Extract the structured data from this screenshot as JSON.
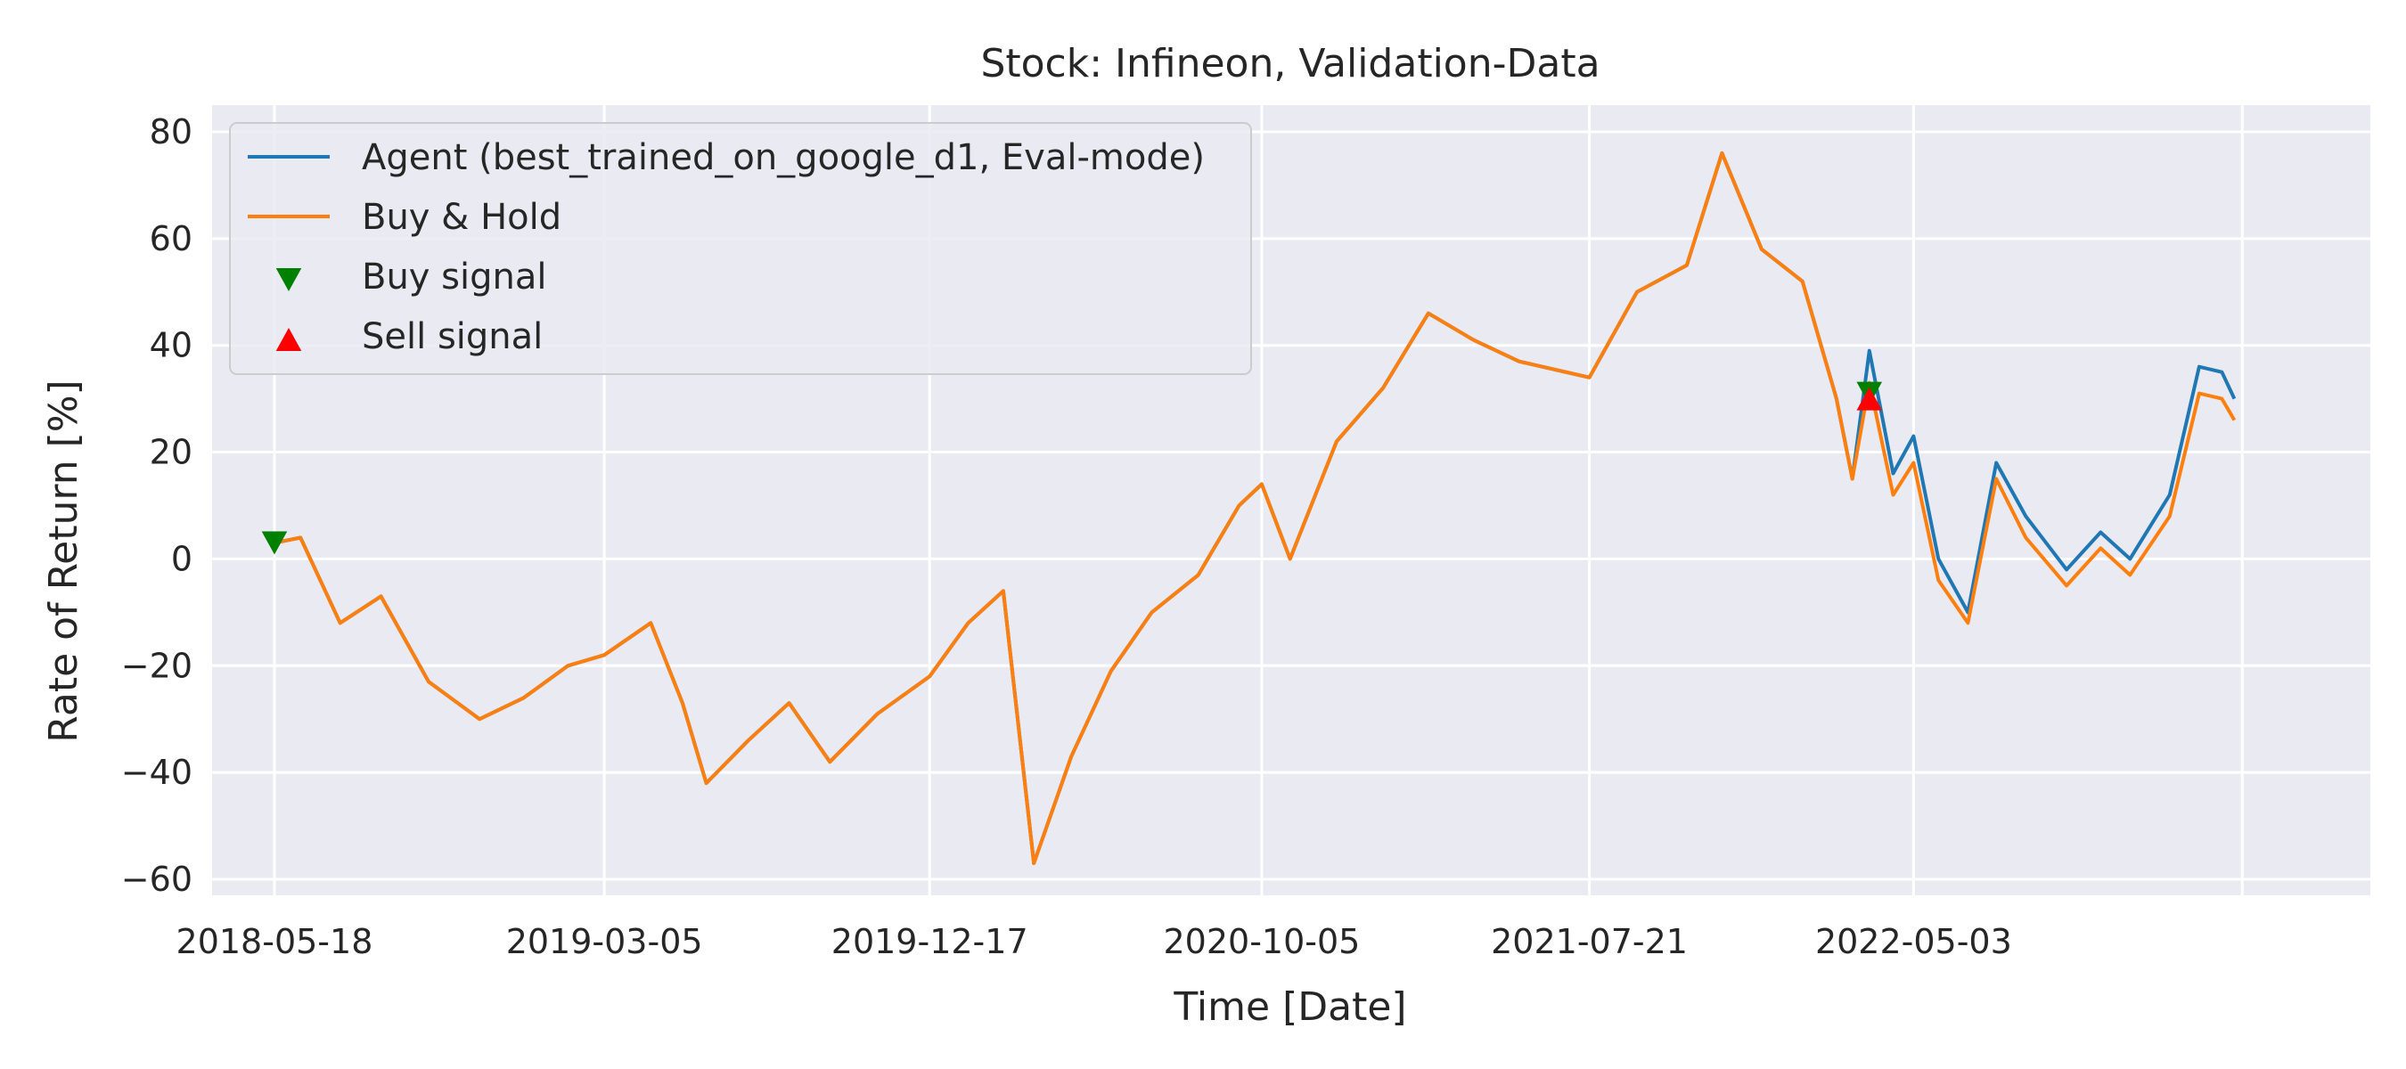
{
  "chart_data": {
    "type": "line",
    "title": "Stock: Infineon, Validation-Data",
    "xlabel": "Time [Date]",
    "ylabel": "Rate of Return [%]",
    "ylim": [
      -63,
      85
    ],
    "xlim": [
      "2018-03-24",
      "2023-06-10"
    ],
    "yticks": [
      -60,
      -40,
      -20,
      0,
      20,
      40,
      60,
      80
    ],
    "ytick_labels": [
      "−60",
      "−40",
      "−20",
      "0",
      "20",
      "40",
      "60",
      "80"
    ],
    "xticks": [
      "2018-05-18",
      "2019-03-05",
      "2019-12-17",
      "2020-10-05",
      "2021-07-21",
      "2022-05-03",
      "2023-02-17"
    ],
    "xtick_labels": [
      "2018-05-18",
      "2019-03-05",
      "2019-12-17",
      "2020-10-05",
      "2021-07-21",
      "2022-05-03",
      ""
    ],
    "grid": true,
    "background": "#eaeaf2",
    "legend_position": "top-left",
    "series": [
      {
        "name": "Agent (best_trained_on_google_d1, Eval-mode)",
        "color": "#1f77b4",
        "x": [
          "2018-05-18",
          "2018-06-10",
          "2018-07-15",
          "2018-08-20",
          "2018-10-01",
          "2018-11-15",
          "2018-12-24",
          "2019-02-01",
          "2019-03-05",
          "2019-04-15",
          "2019-05-13",
          "2019-06-03",
          "2019-07-10",
          "2019-08-15",
          "2019-09-20",
          "2019-11-01",
          "2019-12-17",
          "2020-01-20",
          "2020-02-20",
          "2020-03-18",
          "2020-04-20",
          "2020-05-25",
          "2020-06-30",
          "2020-08-10",
          "2020-09-15",
          "2020-10-05",
          "2020-10-30",
          "2020-12-10",
          "2021-01-20",
          "2021-03-01",
          "2021-04-10",
          "2021-05-20",
          "2021-07-21",
          "2021-09-01",
          "2021-10-15",
          "2021-11-15",
          "2021-12-20",
          "2022-01-25",
          "2022-02-24",
          "2022-03-10",
          "2022-03-25",
          "2022-04-15",
          "2022-05-03",
          "2022-05-25",
          "2022-06-20",
          "2022-07-15",
          "2022-08-10",
          "2022-09-15",
          "2022-10-15",
          "2022-11-10",
          "2022-12-15",
          "2023-01-10",
          "2023-01-30",
          "2023-02-10"
        ],
        "values": [
          3,
          4,
          -12,
          -7,
          -23,
          -30,
          -26,
          -20,
          -18,
          -12,
          -27,
          -42,
          -34,
          -27,
          -38,
          -29,
          -22,
          -12,
          -6,
          -57,
          -37,
          -21,
          -10,
          -3,
          10,
          14,
          0,
          22,
          32,
          46,
          41,
          37,
          34,
          50,
          55,
          76,
          58,
          52,
          30,
          15,
          39,
          16,
          23,
          0,
          -10,
          18,
          8,
          -2,
          5,
          0,
          12,
          36,
          35,
          30
        ]
      },
      {
        "name": "Buy & Hold",
        "color": "#ff7f0e",
        "x": [
          "2018-05-18",
          "2018-06-10",
          "2018-07-15",
          "2018-08-20",
          "2018-10-01",
          "2018-11-15",
          "2018-12-24",
          "2019-02-01",
          "2019-03-05",
          "2019-04-15",
          "2019-05-13",
          "2019-06-03",
          "2019-07-10",
          "2019-08-15",
          "2019-09-20",
          "2019-11-01",
          "2019-12-17",
          "2020-01-20",
          "2020-02-20",
          "2020-03-18",
          "2020-04-20",
          "2020-05-25",
          "2020-06-30",
          "2020-08-10",
          "2020-09-15",
          "2020-10-05",
          "2020-10-30",
          "2020-12-10",
          "2021-01-20",
          "2021-03-01",
          "2021-04-10",
          "2021-05-20",
          "2021-07-21",
          "2021-09-01",
          "2021-10-15",
          "2021-11-15",
          "2021-12-20",
          "2022-01-25",
          "2022-02-24",
          "2022-03-10",
          "2022-03-25",
          "2022-04-15",
          "2022-05-03",
          "2022-05-25",
          "2022-06-20",
          "2022-07-15",
          "2022-08-10",
          "2022-09-15",
          "2022-10-15",
          "2022-11-10",
          "2022-12-15",
          "2023-01-10",
          "2023-01-30",
          "2023-02-10"
        ],
        "values": [
          3,
          4,
          -12,
          -7,
          -23,
          -30,
          -26,
          -20,
          -18,
          -12,
          -27,
          -42,
          -34,
          -27,
          -38,
          -29,
          -22,
          -12,
          -6,
          -57,
          -37,
          -21,
          -10,
          -3,
          10,
          14,
          0,
          22,
          32,
          46,
          41,
          37,
          34,
          50,
          55,
          76,
          58,
          52,
          30,
          15,
          33,
          12,
          18,
          -4,
          -12,
          15,
          4,
          -5,
          2,
          -3,
          8,
          31,
          30,
          26
        ]
      }
    ],
    "markers": [
      {
        "name": "Buy signal",
        "symbol": "triangle-down",
        "color": "#008000",
        "points": [
          {
            "x": "2018-05-18",
            "y": 3
          },
          {
            "x": "2022-03-25",
            "y": 31
          }
        ]
      },
      {
        "name": "Sell signal",
        "symbol": "triangle-up",
        "color": "#ff0000",
        "points": [
          {
            "x": "2022-03-25",
            "y": 30
          }
        ]
      }
    ]
  }
}
